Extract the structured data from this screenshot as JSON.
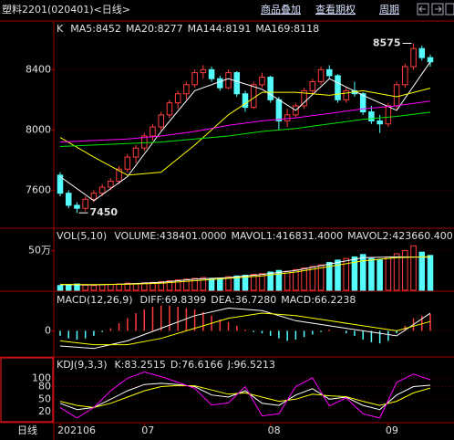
{
  "header": {
    "title": "塑料2201(020401)<日线>",
    "menu": [
      "商品叠加",
      "查看期权",
      "周期"
    ]
  },
  "chart_data": [
    {
      "type": "candlestick",
      "label": "K",
      "categories": [
        "202106",
        null,
        null,
        null,
        null,
        null,
        null,
        null,
        null,
        null,
        "07",
        null,
        null,
        null,
        null,
        null,
        null,
        null,
        null,
        null,
        null,
        null,
        null,
        null,
        null,
        "08",
        null,
        null,
        null,
        null,
        null,
        null,
        null,
        null,
        null,
        null,
        null,
        null,
        null,
        "09",
        null,
        null,
        null,
        null,
        null
      ],
      "open": [
        7700,
        7580,
        7500,
        7480,
        7540,
        7580,
        7620,
        7660,
        7740,
        7820,
        7880,
        7960,
        8020,
        8100,
        8180,
        8240,
        8300,
        8380,
        8400,
        8340,
        8280,
        8380,
        8240,
        8150,
        8300,
        8350,
        8200,
        8060,
        8100,
        8160,
        8260,
        8320,
        8400,
        8360,
        8200,
        8260,
        8240,
        8120,
        8060,
        8040,
        8160,
        8300,
        8420,
        8540,
        8480
      ],
      "high": [
        7720,
        7600,
        7520,
        7560,
        7600,
        7640,
        7680,
        7760,
        7840,
        7900,
        7980,
        8040,
        8120,
        8200,
        8260,
        8320,
        8400,
        8430,
        8420,
        8360,
        8400,
        8390,
        8260,
        8320,
        8380,
        8360,
        8220,
        8140,
        8180,
        8280,
        8340,
        8420,
        8430,
        8370,
        8280,
        8320,
        8250,
        8160,
        8100,
        8180,
        8320,
        8440,
        8575,
        8560,
        8500
      ],
      "low": [
        7560,
        7480,
        7450,
        7460,
        7520,
        7560,
        7600,
        7640,
        7720,
        7780,
        7860,
        7930,
        8000,
        8080,
        8140,
        8200,
        8280,
        8340,
        8320,
        8260,
        8270,
        8220,
        8120,
        8140,
        8280,
        8180,
        8000,
        8020,
        8080,
        8140,
        8240,
        8300,
        8340,
        8180,
        8180,
        8220,
        8100,
        8040,
        7980,
        8020,
        8140,
        8280,
        8400,
        8460,
        8420
      ],
      "close": [
        7580,
        7500,
        7480,
        7540,
        7580,
        7620,
        7660,
        7740,
        7820,
        7880,
        7960,
        8020,
        8100,
        8180,
        8240,
        8300,
        8380,
        8400,
        8340,
        8280,
        8380,
        8240,
        8150,
        8300,
        8350,
        8200,
        8060,
        8100,
        8160,
        8260,
        8320,
        8400,
        8360,
        8200,
        8260,
        8240,
        8120,
        8060,
        8040,
        8160,
        8300,
        8420,
        8540,
        8480,
        8452
      ],
      "up_color": "#ff3c3c",
      "down_color": "#54fcfc",
      "series": [
        {
          "name": "MA5:8452",
          "color": "#ffffff",
          "x": [
            0,
            4,
            8,
            12,
            16,
            20,
            24,
            28,
            32,
            36,
            40,
            44
          ],
          "values": [
            7690,
            7530,
            7690,
            7990,
            8260,
            8340,
            8270,
            8130,
            8340,
            8230,
            8130,
            8452
          ]
        },
        {
          "name": "MA20:8277",
          "color": "#ffff00",
          "x": [
            0,
            4,
            8,
            12,
            16,
            20,
            24,
            28,
            32,
            36,
            40,
            44
          ],
          "values": [
            7950,
            7820,
            7700,
            7720,
            7900,
            8100,
            8250,
            8250,
            8230,
            8260,
            8220,
            8277
          ]
        },
        {
          "name": "MA144:8191",
          "color": "#ff00ff",
          "x": [
            0,
            4,
            8,
            12,
            16,
            20,
            24,
            28,
            32,
            36,
            40,
            44
          ],
          "values": [
            7920,
            7930,
            7940,
            7960,
            7990,
            8030,
            8060,
            8080,
            8110,
            8140,
            8160,
            8191
          ]
        },
        {
          "name": "MA169:8118",
          "color": "#00e600",
          "x": [
            0,
            4,
            8,
            12,
            16,
            20,
            24,
            28,
            32,
            36,
            40,
            44
          ],
          "values": [
            7890,
            7900,
            7910,
            7920,
            7940,
            7960,
            7990,
            8010,
            8040,
            8070,
            8090,
            8118
          ]
        }
      ],
      "annotations": [
        {
          "label": "8575",
          "value": 8575,
          "x": 42,
          "side": "left"
        },
        {
          "label": "7450",
          "value": 7450,
          "x": 2,
          "side": "right"
        }
      ],
      "ylim": [
        7360,
        8620
      ],
      "yticks": [
        8400,
        8000,
        7600
      ],
      "grid": true
    },
    {
      "type": "volume",
      "label": "VOL(5,10)",
      "up_color": "#ff3c3c",
      "down_color": "#54fcfc",
      "series": [
        {
          "name": "VOLUME:438401.0000",
          "type": "bar",
          "color": "#ffffff",
          "values": [
            60000,
            70000,
            80000,
            65000,
            60000,
            70000,
            75000,
            80000,
            90000,
            85000,
            95000,
            100000,
            110000,
            120000,
            130000,
            140000,
            150000,
            160000,
            150000,
            140000,
            170000,
            180000,
            190000,
            200000,
            210000,
            230000,
            250000,
            240000,
            260000,
            280000,
            300000,
            320000,
            350000,
            380000,
            400000,
            420000,
            450000,
            400000,
            380000,
            420000,
            460000,
            500000,
            560000,
            480000,
            438401
          ]
        },
        {
          "name": "MAVOL1:416831.4000",
          "type": "line",
          "color": "#ffffff",
          "x": [
            0,
            4,
            8,
            12,
            16,
            20,
            24,
            28,
            32,
            36,
            40,
            44
          ],
          "values": [
            70000,
            68000,
            80000,
            100000,
            140000,
            160000,
            200000,
            250000,
            330000,
            410000,
            420000,
            416831.4
          ]
        },
        {
          "name": "MAVOL2:423660.400",
          "type": "line",
          "color": "#ffff00",
          "x": [
            0,
            4,
            8,
            12,
            16,
            20,
            24,
            28,
            32,
            36,
            40,
            44
          ],
          "values": [
            75000,
            72000,
            76000,
            90000,
            120000,
            150000,
            180000,
            230000,
            300000,
            370000,
            410000,
            423660.4
          ]
        }
      ],
      "ylim": [
        0,
        620000
      ],
      "yticks": [
        {
          "value": 500000,
          "label": "50万"
        }
      ],
      "grid": true
    },
    {
      "type": "macd",
      "label": "MACD(12,26,9)",
      "series": [
        {
          "name": "DIFF:69.8399",
          "type": "line",
          "color": "#ffffff",
          "x": [
            0,
            4,
            8,
            12,
            16,
            20,
            24,
            28,
            32,
            36,
            40,
            44
          ],
          "values": [
            -60,
            -70,
            -40,
            10,
            60,
            90,
            80,
            40,
            20,
            0,
            -20,
            69.8399
          ]
        },
        {
          "name": "DEA:36.7280",
          "type": "line",
          "color": "#ffff00",
          "x": [
            0,
            4,
            8,
            12,
            16,
            20,
            24,
            28,
            32,
            36,
            40,
            44
          ],
          "values": [
            -40,
            -55,
            -55,
            -30,
            10,
            50,
            70,
            60,
            40,
            20,
            0,
            36.728
          ]
        },
        {
          "name": "MACD:66.2238",
          "type": "bar",
          "color": "#ffffff",
          "up_color": "#ff3c3c",
          "down_color": "#54fcfc",
          "values": [
            -20,
            -30,
            -35,
            -30,
            -20,
            -5,
            10,
            30,
            50,
            70,
            85,
            95,
            100,
            100,
            95,
            90,
            85,
            75,
            60,
            45,
            35,
            20,
            5,
            -5,
            -10,
            -20,
            -30,
            -40,
            -35,
            -25,
            -15,
            -5,
            5,
            0,
            -10,
            -20,
            -35,
            -45,
            -50,
            -40,
            -10,
            20,
            50,
            60,
            66.2238
          ]
        }
      ],
      "ylim": [
        -100,
        110
      ],
      "yticks": [
        0
      ],
      "grid": true
    },
    {
      "type": "kdj",
      "label": "KDJ(9,3,3)",
      "xlabel": "日线",
      "series": [
        {
          "name": "K:83.2515",
          "color": "#ffffff",
          "x": [
            0,
            2,
            4,
            6,
            8,
            10,
            12,
            14,
            16,
            18,
            20,
            22,
            24,
            26,
            28,
            30,
            32,
            34,
            36,
            38,
            40,
            42,
            44
          ],
          "values": [
            40,
            25,
            30,
            50,
            70,
            85,
            88,
            85,
            80,
            60,
            55,
            70,
            40,
            35,
            60,
            75,
            50,
            55,
            35,
            25,
            60,
            80,
            83.2515
          ]
        },
        {
          "name": "D:76.6166",
          "color": "#ffff00",
          "x": [
            0,
            2,
            4,
            6,
            8,
            10,
            12,
            14,
            16,
            18,
            20,
            22,
            24,
            26,
            28,
            30,
            32,
            34,
            36,
            38,
            40,
            42,
            44
          ],
          "values": [
            45,
            35,
            30,
            40,
            55,
            70,
            80,
            83,
            82,
            72,
            62,
            65,
            55,
            45,
            50,
            62,
            58,
            56,
            45,
            35,
            45,
            65,
            76.6166
          ]
        },
        {
          "name": "J:96.5213",
          "color": "#ff00ff",
          "x": [
            0,
            2,
            4,
            6,
            8,
            10,
            12,
            14,
            16,
            18,
            20,
            22,
            24,
            26,
            28,
            30,
            32,
            34,
            36,
            38,
            40,
            42,
            44
          ],
          "values": [
            30,
            5,
            30,
            70,
            100,
            115,
            104,
            90,
            76,
            36,
            41,
            80,
            10,
            15,
            80,
            101,
            34,
            53,
            15,
            5,
            90,
            110,
            96.5213
          ]
        }
      ],
      "ylim": [
        -4,
        127
      ],
      "yticks": [
        100,
        80,
        50,
        20
      ],
      "grid": true
    }
  ]
}
